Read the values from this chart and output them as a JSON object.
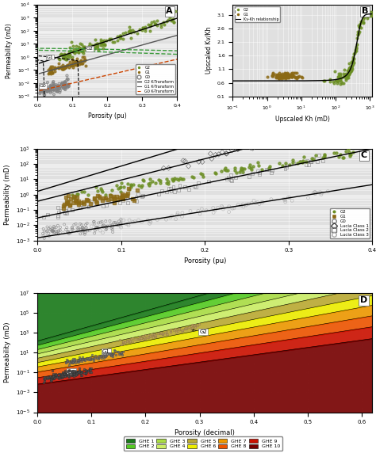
{
  "g2_color": "#6b8e23",
  "g1_color": "#8b6914",
  "g0_color": "#808080",
  "bg_color": "#e0e0e0",
  "ghe_colors": [
    "#1a7a1a",
    "#66cc33",
    "#aadd44",
    "#ccee66",
    "#bbaa22",
    "#eeee00",
    "#ee9900",
    "#ee6600",
    "#cc2200",
    "#770000"
  ],
  "ghe_names": [
    "GHE 1",
    "GHE 2",
    "GHE 3",
    "GHE 4",
    "GHE 5",
    "GHE 6",
    "GHE 7",
    "GHE 8",
    "GHE 9",
    "GHE 10"
  ]
}
